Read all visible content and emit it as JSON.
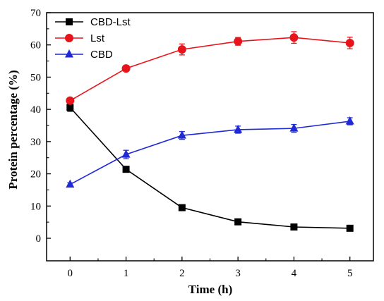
{
  "chart_data": {
    "type": "line",
    "title": "",
    "xlabel": "Time (h)",
    "ylabel": "Protein percentage (%)",
    "x": [
      0,
      1,
      2,
      3,
      4,
      5
    ],
    "xticks": [
      "0",
      "1",
      "2",
      "3",
      "4",
      "5"
    ],
    "yticks": [
      "0",
      "10",
      "20",
      "30",
      "40",
      "50",
      "60",
      "70"
    ],
    "xlim": [
      -0.42,
      5.42
    ],
    "ylim": [
      -7,
      70
    ],
    "grid": false,
    "legend_position": "top-left",
    "series": [
      {
        "name": "CBD-Lst",
        "color": "#000000",
        "marker": "square",
        "values": [
          40.6,
          21.4,
          9.5,
          5.1,
          3.5,
          3.1
        ],
        "errors": [
          1.2,
          0.6,
          0.6,
          0.5,
          0.4,
          0.4
        ]
      },
      {
        "name": "Lst",
        "color": "#e8141b",
        "marker": "circle",
        "values": [
          42.7,
          52.7,
          58.6,
          61.1,
          62.3,
          60.6
        ],
        "errors": [
          0.8,
          0.9,
          1.7,
          1.2,
          1.8,
          1.8
        ]
      },
      {
        "name": "CBD",
        "color": "#1f2ad6",
        "marker": "triangle",
        "values": [
          16.7,
          26.0,
          31.9,
          33.7,
          34.1,
          36.3
        ],
        "errors": [
          0.5,
          1.3,
          1.2,
          1.1,
          1.2,
          1.1
        ]
      }
    ]
  }
}
